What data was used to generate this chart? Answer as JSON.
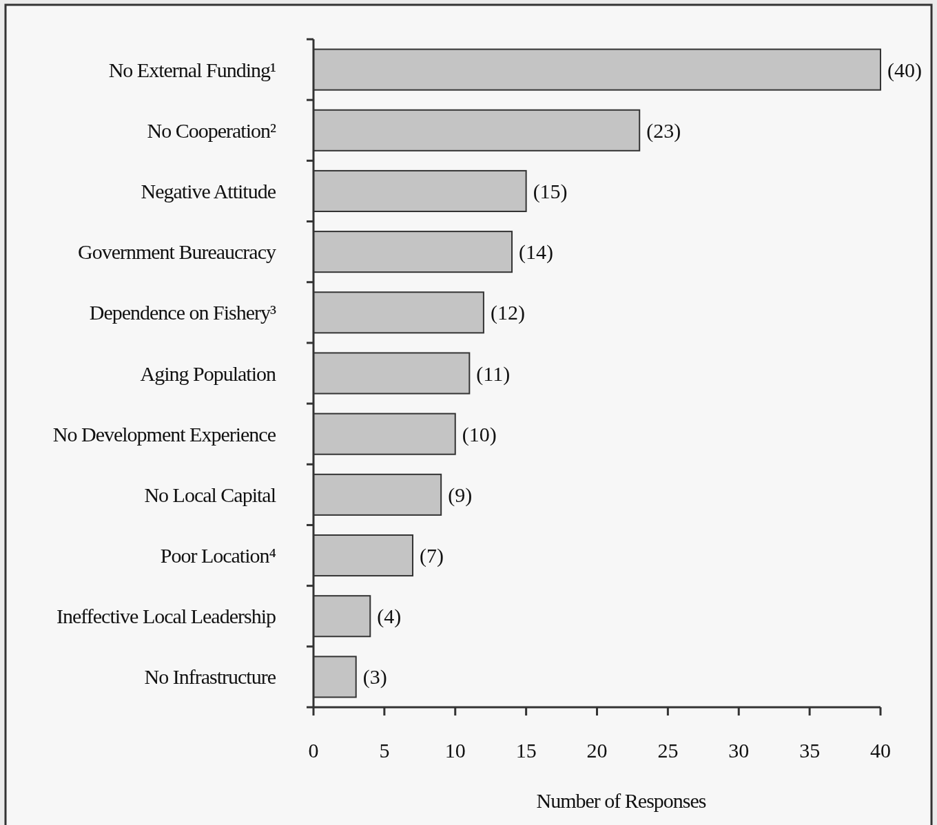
{
  "chart_data": {
    "type": "bar",
    "orientation": "horizontal",
    "xlabel": "Number of Responses",
    "categories": [
      "No External Funding¹",
      "No Cooperation²",
      "Negative Attitude",
      "Government Bureaucracy",
      "Dependence on Fishery³",
      "Aging Population",
      "No Development Experience",
      "No Local Capital",
      "Poor Location⁴",
      "Ineffective Local Leadership",
      "No Infrastructure"
    ],
    "values": [
      40,
      23,
      15,
      14,
      12,
      11,
      10,
      9,
      7,
      4,
      3
    ],
    "value_labels": [
      "(40)",
      "(23)",
      "(15)",
      "(14)",
      "(12)",
      "(11)",
      "(10)",
      "(9)",
      "(7)",
      "(4)",
      "(3)"
    ],
    "color": "#c4c4c4",
    "xlim": [
      0,
      40
    ],
    "xticks": [
      0,
      5,
      10,
      15,
      20,
      25,
      30,
      35,
      40
    ],
    "grid": false
  }
}
